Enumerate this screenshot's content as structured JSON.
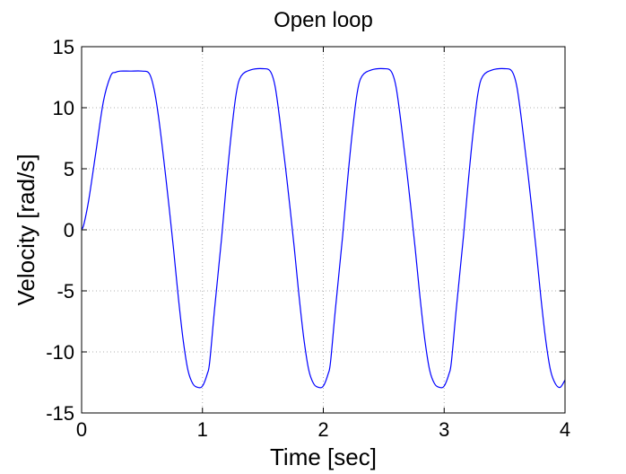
{
  "chart_data": {
    "type": "line",
    "title": "Open loop",
    "xlabel": "Time [sec]",
    "ylabel": "Velocity [rad/s]",
    "xlim": [
      0,
      4
    ],
    "ylim": [
      -15,
      15
    ],
    "xticks": [
      0,
      1,
      2,
      3,
      4
    ],
    "yticks": [
      -15,
      -10,
      -5,
      0,
      5,
      10,
      15
    ],
    "xtick_labels": [
      "0",
      "1",
      "2",
      "3",
      "4"
    ],
    "ytick_labels": [
      "-15",
      "-10",
      "-5",
      "0",
      "5",
      "10",
      "15"
    ],
    "grid": true,
    "series": [
      {
        "color": "#0000ff",
        "x": [
          0,
          0.02,
          0.06,
          0.12,
          0.18,
          0.24,
          0.28,
          0.32,
          0.4,
          0.5,
          0.56,
          0.6,
          0.64,
          0.7,
          0.76,
          0.8,
          0.84,
          0.88,
          0.92,
          0.96,
          1.0,
          1.04,
          1.06,
          1.1,
          1.16,
          1.2,
          1.24,
          1.28,
          1.32,
          1.4,
          1.5,
          1.56,
          1.6,
          1.64,
          1.7,
          1.76,
          1.8,
          1.84,
          1.88,
          1.92,
          1.96,
          2.0,
          2.04,
          2.06,
          2.1,
          2.16,
          2.2,
          2.24,
          2.28,
          2.32,
          2.4,
          2.5,
          2.56,
          2.6,
          2.64,
          2.7,
          2.76,
          2.8,
          2.84,
          2.88,
          2.92,
          2.96,
          3.0,
          3.04,
          3.06,
          3.1,
          3.16,
          3.2,
          3.24,
          3.28,
          3.32,
          3.4,
          3.5,
          3.56,
          3.6,
          3.64,
          3.7,
          3.76,
          3.8,
          3.84,
          3.88,
          3.92,
          3.96,
          4.0
        ],
        "y": [
          0,
          0.5,
          2.5,
          6.5,
          10.5,
          12.6,
          12.9,
          13.0,
          13.0,
          13.0,
          12.8,
          11.5,
          9.0,
          4.0,
          -1.5,
          -5.5,
          -9.0,
          -11.5,
          -12.6,
          -12.9,
          -12.8,
          -11.8,
          -10.8,
          -6.5,
          -0.5,
          4.0,
          8.0,
          11.2,
          12.6,
          13.1,
          13.2,
          13.0,
          11.8,
          9.0,
          4.0,
          -1.5,
          -5.5,
          -9.0,
          -11.5,
          -12.6,
          -12.9,
          -12.8,
          -11.8,
          -10.8,
          -6.5,
          -0.5,
          4.0,
          8.0,
          11.2,
          12.6,
          13.1,
          13.2,
          13.0,
          11.8,
          9.0,
          4.0,
          -1.5,
          -5.5,
          -9.0,
          -11.5,
          -12.6,
          -12.9,
          -12.8,
          -11.8,
          -10.8,
          -6.5,
          -0.5,
          4.0,
          8.0,
          11.2,
          12.6,
          13.1,
          13.2,
          13.0,
          11.8,
          9.0,
          4.0,
          -1.5,
          -5.5,
          -9.0,
          -11.5,
          -12.6,
          -12.9,
          -12.3
        ]
      }
    ]
  }
}
